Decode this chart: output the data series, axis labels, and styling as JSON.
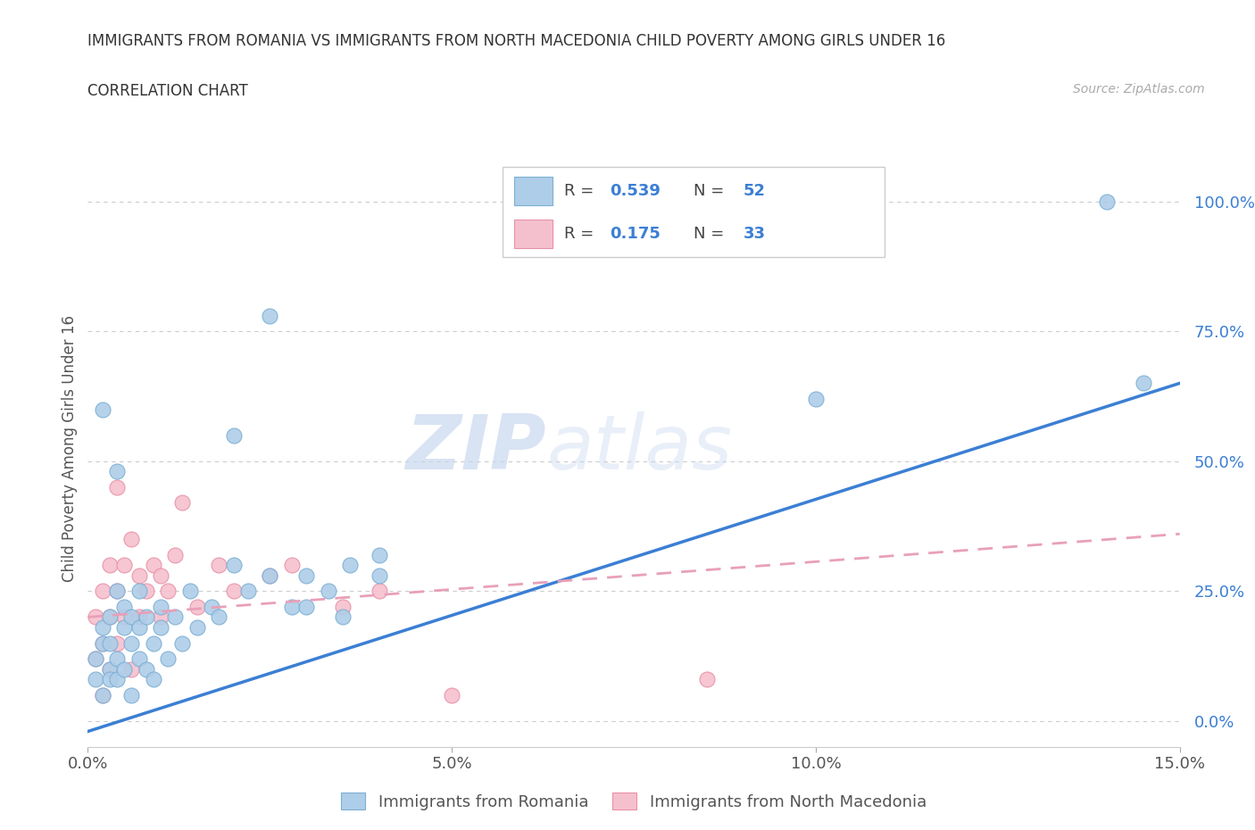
{
  "title_line1": "IMMIGRANTS FROM ROMANIA VS IMMIGRANTS FROM NORTH MACEDONIA CHILD POVERTY AMONG GIRLS UNDER 16",
  "title_line2": "CORRELATION CHART",
  "source_text": "Source: ZipAtlas.com",
  "ylabel": "Child Poverty Among Girls Under 16",
  "watermark_zip": "ZIP",
  "watermark_atlas": "atlas",
  "xlim": [
    0.0,
    0.15
  ],
  "ylim": [
    -0.05,
    1.1
  ],
  "yticks": [
    0.0,
    0.25,
    0.5,
    0.75,
    1.0
  ],
  "ytick_labels": [
    "0.0%",
    "25.0%",
    "50.0%",
    "75.0%",
    "100.0%"
  ],
  "xticks": [
    0.0,
    0.05,
    0.1,
    0.15
  ],
  "xtick_labels": [
    "0.0%",
    "5.0%",
    "10.0%",
    "15.0%"
  ],
  "romania_fill": "#aecde8",
  "romania_edge": "#7bafd4",
  "macedonia_fill": "#f5c0ce",
  "macedonia_edge": "#e890a8",
  "line_romania_color": "#3b7fd4",
  "line_macedonia_color": "#e8a0b8",
  "R_romania": 0.539,
  "N_romania": 52,
  "R_macedonia": 0.175,
  "N_macedonia": 33,
  "romania_x": [
    0.001,
    0.001,
    0.002,
    0.002,
    0.002,
    0.003,
    0.003,
    0.003,
    0.003,
    0.004,
    0.004,
    0.004,
    0.005,
    0.005,
    0.005,
    0.006,
    0.006,
    0.006,
    0.007,
    0.007,
    0.007,
    0.008,
    0.008,
    0.009,
    0.009,
    0.01,
    0.01,
    0.011,
    0.012,
    0.013,
    0.014,
    0.015,
    0.017,
    0.018,
    0.02,
    0.022,
    0.025,
    0.028,
    0.03,
    0.033,
    0.036,
    0.04,
    0.02,
    0.025,
    0.03,
    0.035,
    0.04,
    0.14,
    0.1,
    0.145,
    0.004,
    0.002
  ],
  "romania_y": [
    0.08,
    0.12,
    0.15,
    0.05,
    0.18,
    0.1,
    0.2,
    0.08,
    0.15,
    0.12,
    0.25,
    0.08,
    0.18,
    0.1,
    0.22,
    0.15,
    0.2,
    0.05,
    0.18,
    0.12,
    0.25,
    0.1,
    0.2,
    0.15,
    0.08,
    0.18,
    0.22,
    0.12,
    0.2,
    0.15,
    0.25,
    0.18,
    0.22,
    0.2,
    0.3,
    0.25,
    0.28,
    0.22,
    0.28,
    0.25,
    0.3,
    0.28,
    0.55,
    0.78,
    0.22,
    0.2,
    0.32,
    1.0,
    0.62,
    0.65,
    0.48,
    0.6
  ],
  "macedonia_x": [
    0.001,
    0.001,
    0.002,
    0.002,
    0.003,
    0.003,
    0.003,
    0.004,
    0.004,
    0.005,
    0.005,
    0.006,
    0.006,
    0.007,
    0.007,
    0.008,
    0.009,
    0.01,
    0.01,
    0.011,
    0.012,
    0.013,
    0.015,
    0.018,
    0.02,
    0.025,
    0.028,
    0.035,
    0.04,
    0.05,
    0.085,
    0.004,
    0.002
  ],
  "macedonia_y": [
    0.2,
    0.12,
    0.25,
    0.15,
    0.3,
    0.1,
    0.2,
    0.25,
    0.15,
    0.3,
    0.2,
    0.35,
    0.1,
    0.28,
    0.2,
    0.25,
    0.3,
    0.2,
    0.28,
    0.25,
    0.32,
    0.42,
    0.22,
    0.3,
    0.25,
    0.28,
    0.3,
    0.22,
    0.25,
    0.05,
    0.08,
    0.45,
    0.05
  ],
  "background_color": "#ffffff"
}
